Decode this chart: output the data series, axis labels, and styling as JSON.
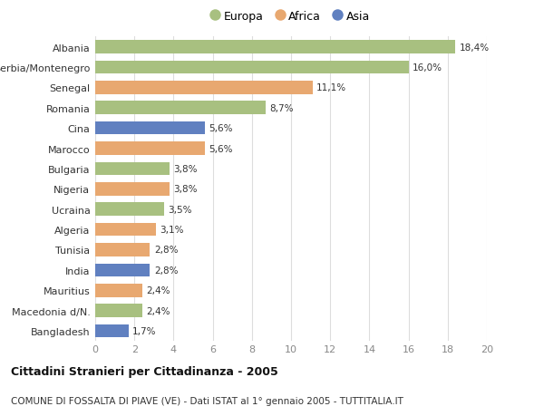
{
  "categories": [
    "Albania",
    "Serbia/Montenegro",
    "Senegal",
    "Romania",
    "Cina",
    "Marocco",
    "Bulgaria",
    "Nigeria",
    "Ucraina",
    "Algeria",
    "Tunisia",
    "India",
    "Mauritius",
    "Macedonia d/N.",
    "Bangladesh"
  ],
  "values": [
    18.4,
    16.0,
    11.1,
    8.7,
    5.6,
    5.6,
    3.8,
    3.8,
    3.5,
    3.1,
    2.8,
    2.8,
    2.4,
    2.4,
    1.7
  ],
  "labels": [
    "18,4%",
    "16,0%",
    "11,1%",
    "8,7%",
    "5,6%",
    "5,6%",
    "3,8%",
    "3,8%",
    "3,5%",
    "3,1%",
    "2,8%",
    "2,8%",
    "2,4%",
    "2,4%",
    "1,7%"
  ],
  "continents": [
    "Europa",
    "Europa",
    "Africa",
    "Europa",
    "Asia",
    "Africa",
    "Europa",
    "Africa",
    "Europa",
    "Africa",
    "Africa",
    "Asia",
    "Africa",
    "Europa",
    "Asia"
  ],
  "colors": {
    "Europa": "#a8c080",
    "Africa": "#e8a870",
    "Asia": "#6080c0"
  },
  "legend_order": [
    "Europa",
    "Africa",
    "Asia"
  ],
  "xlim": [
    0,
    20
  ],
  "xticks": [
    0,
    2,
    4,
    6,
    8,
    10,
    12,
    14,
    16,
    18,
    20
  ],
  "title1": "Cittadini Stranieri per Cittadinanza - 2005",
  "title2": "COMUNE DI FOSSALTA DI PIAVE (VE) - Dati ISTAT al 1° gennaio 2005 - TUTTITALIA.IT",
  "background_color": "#ffffff",
  "grid_color": "#dddddd"
}
